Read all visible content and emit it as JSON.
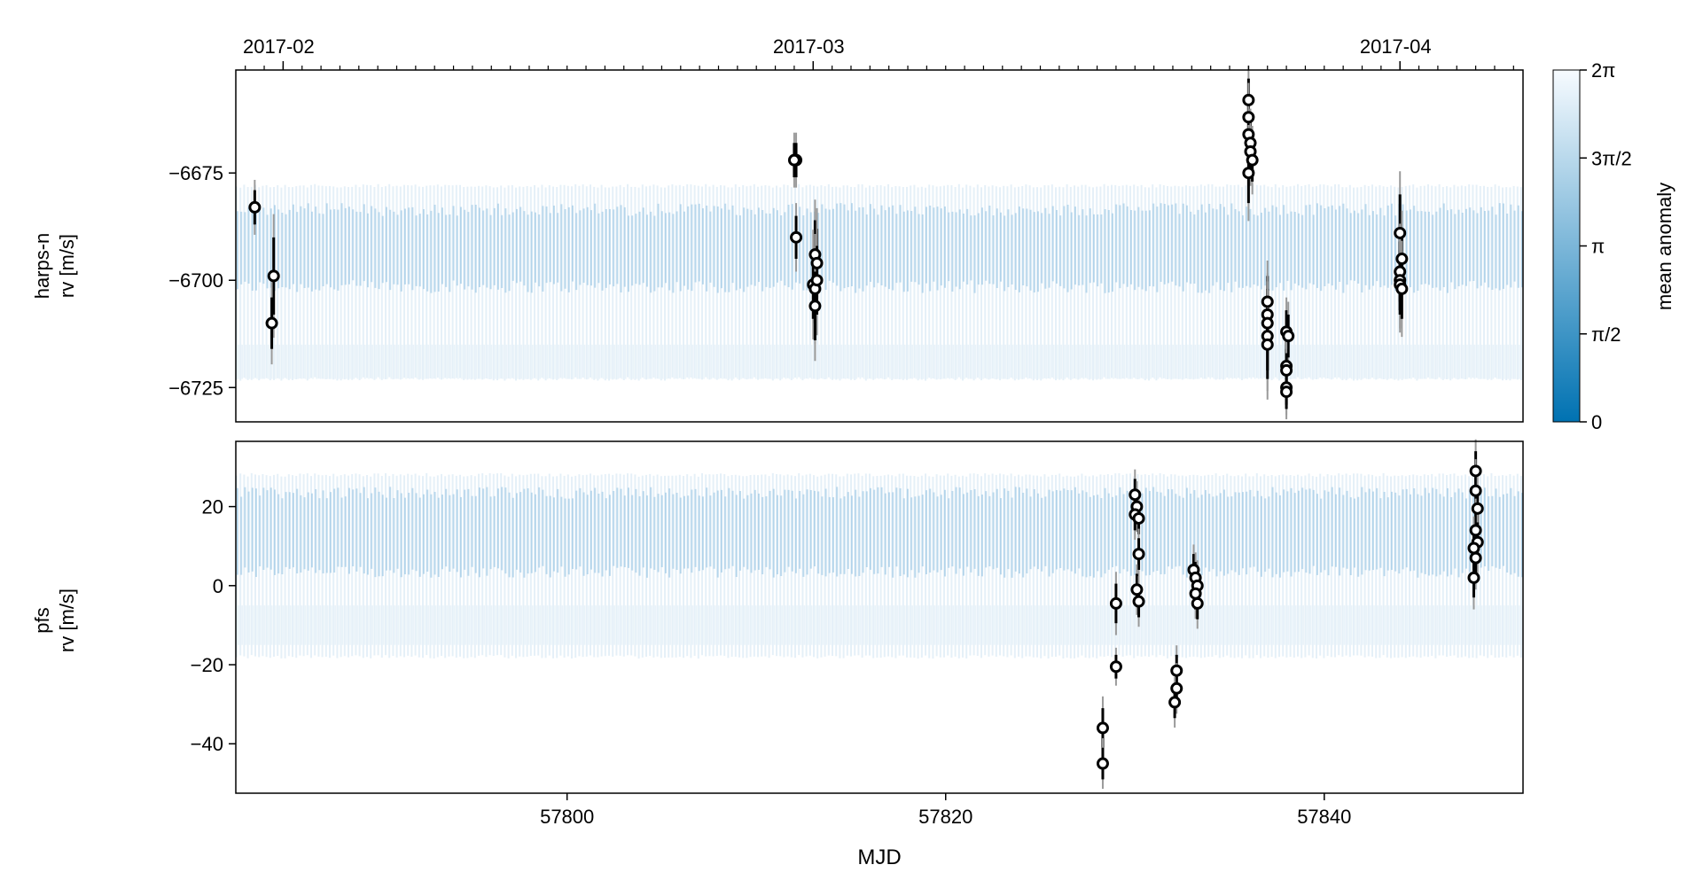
{
  "chart_data": [
    {
      "type": "scatter",
      "panel": "top",
      "ylabel_lines": [
        "harps-n",
        "rv [m/s]"
      ],
      "xlim": [
        57782.5,
        57850.5
      ],
      "ylim": [
        -6733,
        -6651
      ],
      "yticks": [
        -6675,
        -6700,
        -6725
      ],
      "ytick_labels": [
        "−6675",
        "−6700",
        "−6725"
      ],
      "top_axis": {
        "ticks": [
          57785,
          57813,
          57844
        ],
        "labels": [
          "2017-02",
          "2017-03",
          "2017-04"
        ],
        "minor_tick_step_days": 1
      },
      "model_band": {
        "description_colorbar": "mean anomaly",
        "dense_range": [
          -6703,
          -6682
        ],
        "outer_range": [
          -6723,
          -6678
        ],
        "lower_light_range": [
          -6723,
          -6715
        ]
      },
      "series": [
        {
          "points": [
            {
              "x": 57783.5,
              "y": -6683,
              "err": 4
            },
            {
              "x": 57784.5,
              "y": -6699,
              "err": 9
            },
            {
              "x": 57784.4,
              "y": -6710,
              "err": 6
            },
            {
              "x": 57812.1,
              "y": -6672,
              "err": 4
            },
            {
              "x": 57812.0,
              "y": -6672,
              "err": 4
            },
            {
              "x": 57812.1,
              "y": -6690,
              "err": 5
            },
            {
              "x": 57813.1,
              "y": -6694,
              "err": 8
            },
            {
              "x": 57813.2,
              "y": -6696,
              "err": 8
            },
            {
              "x": 57813.0,
              "y": -6701,
              "err": 8
            },
            {
              "x": 57813.1,
              "y": -6702,
              "err": 8
            },
            {
              "x": 57813.2,
              "y": -6700,
              "err": 8
            },
            {
              "x": 57813.1,
              "y": -6706,
              "err": 8
            },
            {
              "x": 57836.0,
              "y": -6658,
              "err": 5
            },
            {
              "x": 57836.0,
              "y": -6662,
              "err": 5
            },
            {
              "x": 57836.0,
              "y": -6666,
              "err": 5
            },
            {
              "x": 57836.1,
              "y": -6668,
              "err": 5
            },
            {
              "x": 57836.1,
              "y": -6670,
              "err": 5
            },
            {
              "x": 57836.2,
              "y": -6672,
              "err": 5
            },
            {
              "x": 57836.0,
              "y": -6675,
              "err": 7
            },
            {
              "x": 57837.0,
              "y": -6705,
              "err": 6
            },
            {
              "x": 57837.0,
              "y": -6708,
              "err": 6
            },
            {
              "x": 57837.0,
              "y": -6710,
              "err": 6
            },
            {
              "x": 57837.0,
              "y": -6713,
              "err": 8
            },
            {
              "x": 57837.0,
              "y": -6715,
              "err": 8
            },
            {
              "x": 57838.0,
              "y": -6712,
              "err": 5
            },
            {
              "x": 57838.1,
              "y": -6713,
              "err": 5
            },
            {
              "x": 57838.0,
              "y": -6720,
              "err": 4
            },
            {
              "x": 57838.0,
              "y": -6721,
              "err": 4
            },
            {
              "x": 57838.0,
              "y": -6725,
              "err": 4
            },
            {
              "x": 57838.0,
              "y": -6726,
              "err": 4
            },
            {
              "x": 57844.0,
              "y": -6689,
              "err": 9
            },
            {
              "x": 57844.1,
              "y": -6695,
              "err": 7
            },
            {
              "x": 57844.0,
              "y": -6698,
              "err": 7
            },
            {
              "x": 57844.0,
              "y": -6700,
              "err": 7
            },
            {
              "x": 57844.0,
              "y": -6701,
              "err": 7
            },
            {
              "x": 57844.1,
              "y": -6702,
              "err": 7
            }
          ]
        }
      ]
    },
    {
      "type": "scatter",
      "panel": "bottom",
      "ylabel_lines": [
        "pfs",
        "rv [m/s]"
      ],
      "xlabel": "MJD",
      "xlim": [
        57782.5,
        57850.5
      ],
      "ylim": [
        -52.5,
        36.5
      ],
      "xticks": [
        57800,
        57820,
        57840
      ],
      "xtick_labels": [
        "57800",
        "57820",
        "57840"
      ],
      "yticks": [
        20,
        0,
        -20,
        -40
      ],
      "ytick_labels": [
        "20",
        "0",
        "−20",
        "−40"
      ],
      "model_band": {
        "dense_range": [
          2,
          25
        ],
        "outer_range": [
          -18,
          28
        ],
        "lower_light_range": [
          -15,
          -5
        ]
      },
      "series": [
        {
          "points": [
            {
              "x": 57828.3,
              "y": -36,
              "err": 5
            },
            {
              "x": 57828.3,
              "y": -45,
              "err": 4
            },
            {
              "x": 57829.0,
              "y": -4.5,
              "err": 5
            },
            {
              "x": 57829.0,
              "y": -20.5,
              "err": 3
            },
            {
              "x": 57830.0,
              "y": 23,
              "err": 4
            },
            {
              "x": 57830.1,
              "y": 20,
              "err": 4
            },
            {
              "x": 57830.0,
              "y": 18,
              "err": 4
            },
            {
              "x": 57830.2,
              "y": 17,
              "err": 4
            },
            {
              "x": 57830.2,
              "y": 8,
              "err": 4
            },
            {
              "x": 57830.1,
              "y": -1,
              "err": 4
            },
            {
              "x": 57830.2,
              "y": -4,
              "err": 4
            },
            {
              "x": 57832.2,
              "y": -21.5,
              "err": 4
            },
            {
              "x": 57832.2,
              "y": -26,
              "err": 4
            },
            {
              "x": 57832.1,
              "y": -29.5,
              "err": 4
            },
            {
              "x": 57833.1,
              "y": 4,
              "err": 4
            },
            {
              "x": 57833.2,
              "y": 2,
              "err": 4
            },
            {
              "x": 57833.3,
              "y": 0,
              "err": 4
            },
            {
              "x": 57833.2,
              "y": -2,
              "err": 4
            },
            {
              "x": 57833.3,
              "y": -4.5,
              "err": 4
            },
            {
              "x": 57848.0,
              "y": 29,
              "err": 5
            },
            {
              "x": 57848.0,
              "y": 24,
              "err": 5
            },
            {
              "x": 57848.1,
              "y": 19.5,
              "err": 5
            },
            {
              "x": 57848.0,
              "y": 14,
              "err": 5
            },
            {
              "x": 57848.1,
              "y": 11,
              "err": 5
            },
            {
              "x": 57847.9,
              "y": 9.5,
              "err": 5
            },
            {
              "x": 57848.0,
              "y": 7,
              "err": 5
            },
            {
              "x": 57847.9,
              "y": 2,
              "err": 5
            }
          ]
        }
      ]
    }
  ],
  "colorbar": {
    "label": "mean anomaly",
    "ticks": [
      {
        "value": 6.2832,
        "label": "2π"
      },
      {
        "value": 4.7124,
        "label": "3π/2"
      },
      {
        "value": 3.1416,
        "label": "π"
      },
      {
        "value": 1.5708,
        "label": "π/2"
      },
      {
        "value": 0,
        "label": "0"
      }
    ],
    "range": [
      0,
      6.2832
    ],
    "color_low": "#0072b2",
    "color_high": "#f7fbff"
  },
  "colors": {
    "point_fill": "#ffffff",
    "point_stroke": "#000000",
    "model": "#2a87c4"
  }
}
